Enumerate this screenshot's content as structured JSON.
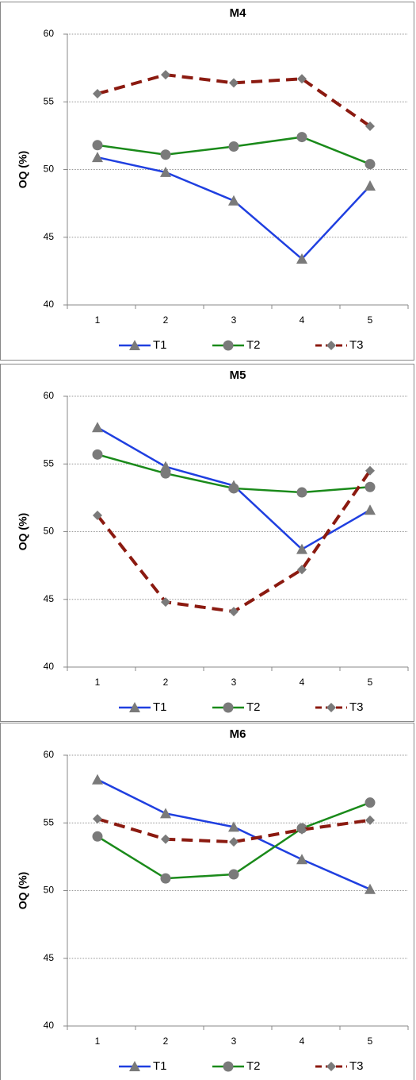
{
  "chart_data": [
    {
      "type": "line",
      "title": "M4",
      "y_label": "OQ (%)",
      "categories": [
        "1",
        "2",
        "3",
        "4",
        "5"
      ],
      "ylim": [
        40,
        60
      ],
      "yticks": [
        40,
        45,
        50,
        55,
        60
      ],
      "grid": true,
      "legend": "bottom",
      "series": [
        {
          "name": "T1",
          "color": "#1f3fe0",
          "marker": "triangle",
          "dash": false,
          "values": [
            50.9,
            49.8,
            47.7,
            43.4,
            48.8
          ]
        },
        {
          "name": "T2",
          "color": "#1a8a1a",
          "marker": "circle",
          "dash": false,
          "values": [
            51.8,
            51.1,
            51.7,
            52.4,
            50.4
          ]
        },
        {
          "name": "T3",
          "color": "#8b1a10",
          "marker": "diamond",
          "dash": true,
          "values": [
            55.6,
            57.0,
            56.4,
            56.7,
            53.2
          ]
        }
      ]
    },
    {
      "type": "line",
      "title": "M5",
      "y_label": "OQ (%)",
      "categories": [
        "1",
        "2",
        "3",
        "4",
        "5"
      ],
      "ylim": [
        40,
        60
      ],
      "yticks": [
        40,
        45,
        50,
        55,
        60
      ],
      "grid": true,
      "legend": "bottom",
      "series": [
        {
          "name": "T1",
          "color": "#1f3fe0",
          "marker": "triangle",
          "dash": false,
          "values": [
            57.7,
            54.8,
            53.4,
            48.7,
            51.6
          ]
        },
        {
          "name": "T2",
          "color": "#1a8a1a",
          "marker": "circle",
          "dash": false,
          "values": [
            55.7,
            54.3,
            53.2,
            52.9,
            53.3
          ]
        },
        {
          "name": "T3",
          "color": "#8b1a10",
          "marker": "diamond",
          "dash": true,
          "values": [
            51.2,
            44.8,
            44.1,
            47.2,
            54.5
          ]
        }
      ]
    },
    {
      "type": "line",
      "title": "M6",
      "y_label": "OQ (%)",
      "categories": [
        "1",
        "2",
        "3",
        "4",
        "5"
      ],
      "ylim": [
        40,
        60
      ],
      "yticks": [
        40,
        45,
        50,
        55,
        60
      ],
      "grid": true,
      "legend": "bottom",
      "series": [
        {
          "name": "T1",
          "color": "#1f3fe0",
          "marker": "triangle",
          "dash": false,
          "values": [
            58.2,
            55.7,
            54.7,
            52.3,
            50.1
          ]
        },
        {
          "name": "T2",
          "color": "#1a8a1a",
          "marker": "circle",
          "dash": false,
          "values": [
            54.0,
            50.9,
            51.2,
            54.6,
            56.5
          ]
        },
        {
          "name": "T3",
          "color": "#8b1a10",
          "marker": "diamond",
          "dash": true,
          "values": [
            55.3,
            53.8,
            53.6,
            54.5,
            55.2
          ]
        }
      ]
    }
  ]
}
